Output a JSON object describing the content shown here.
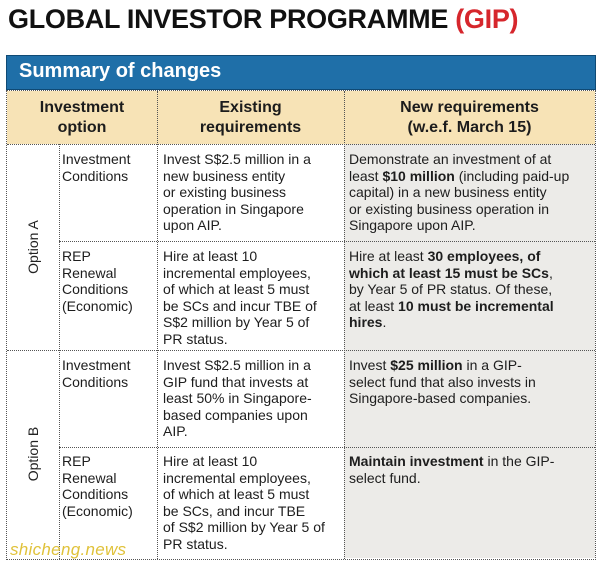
{
  "title": {
    "main": "GLOBAL INVESTOR PROGRAMME ",
    "accent": "(GIP)"
  },
  "banner": "Summary of changes",
  "headers": {
    "col1": "Investment\noption",
    "col2": "Existing\nrequirements",
    "col3": "New requirements\n(w.e.f. March 15)"
  },
  "options": [
    {
      "label": "Option A",
      "rows": [
        {
          "type": "Investment\nConditions",
          "existing": "Invest S$2.5 million in a\nnew business entity\nor existing business\noperation in Singapore\nupon AIP.",
          "new_parts": [
            "Demonstrate an investment of at\nleast ",
            "$10 million",
            " (including paid-up\ncapital) in a new business entity\nor existing business operation in\nSingapore upon AIP."
          ]
        },
        {
          "type": "REP\nRenewal\nConditions\n(Economic)",
          "existing": "Hire at least 10\nincremental employees,\nof which at least 5 must\nbe SCs and incur TBE of\nS$2 million by Year 5 of\nPR status.",
          "new_parts": [
            "Hire at least ",
            "30 employees, of\nwhich at least 15 must be SCs",
            ",\nby Year 5 of PR status. Of these,\nat least ",
            "10 must be incremental\nhires",
            "."
          ]
        }
      ]
    },
    {
      "label": "Option B",
      "rows": [
        {
          "type": "Investment\nConditions",
          "existing": "Invest S$2.5 million in a\nGIP fund that invests at\nleast 50% in Singapore-\nbased companies upon\nAIP.",
          "new_parts": [
            "Invest ",
            "$25 million",
            " in a GIP-\nselect fund that also invests in\nSingapore-based companies."
          ]
        },
        {
          "type": "REP\nRenewal\nConditions\n(Economic)",
          "existing": "Hire at least 10\nincremental employees,\nof which at least 5 must\nbe SCs, and incur TBE\nof S$2 million by Year 5 of\nPR status.",
          "new_parts": [
            "Maintain investment",
            " in the GIP-\nselect fund."
          ]
        }
      ]
    }
  ],
  "watermark": "shicheng.news",
  "colors": {
    "accent": "#d6262c",
    "banner": "#1f6fa8",
    "header_bg": "#f7e3b6",
    "shaded": "#ecebe8"
  }
}
